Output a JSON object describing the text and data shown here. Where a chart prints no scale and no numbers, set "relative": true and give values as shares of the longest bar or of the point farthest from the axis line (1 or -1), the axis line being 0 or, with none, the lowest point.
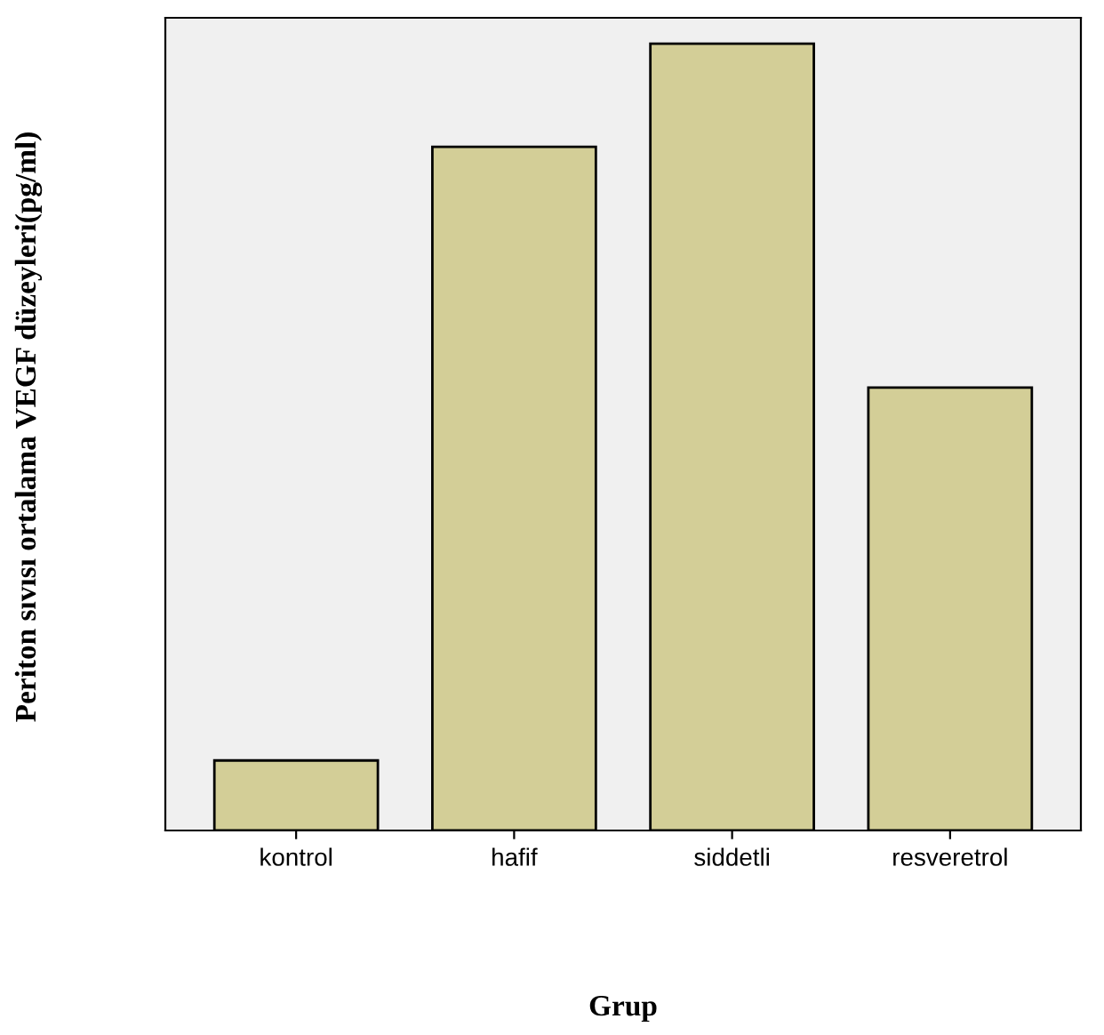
{
  "chart_data": {
    "type": "bar",
    "relative": true,
    "xlabel": "Grup",
    "ylabel": "Periton sıvısı ortalama VEGF düzeyleri(pg/ml)",
    "categories": [
      "kontrol",
      "hafif",
      "siddetli",
      "resveretrol"
    ],
    "values": [
      0.089,
      0.869,
      1.0,
      0.563
    ],
    "color": "#d3ce97",
    "grid": false,
    "legend": false
  }
}
